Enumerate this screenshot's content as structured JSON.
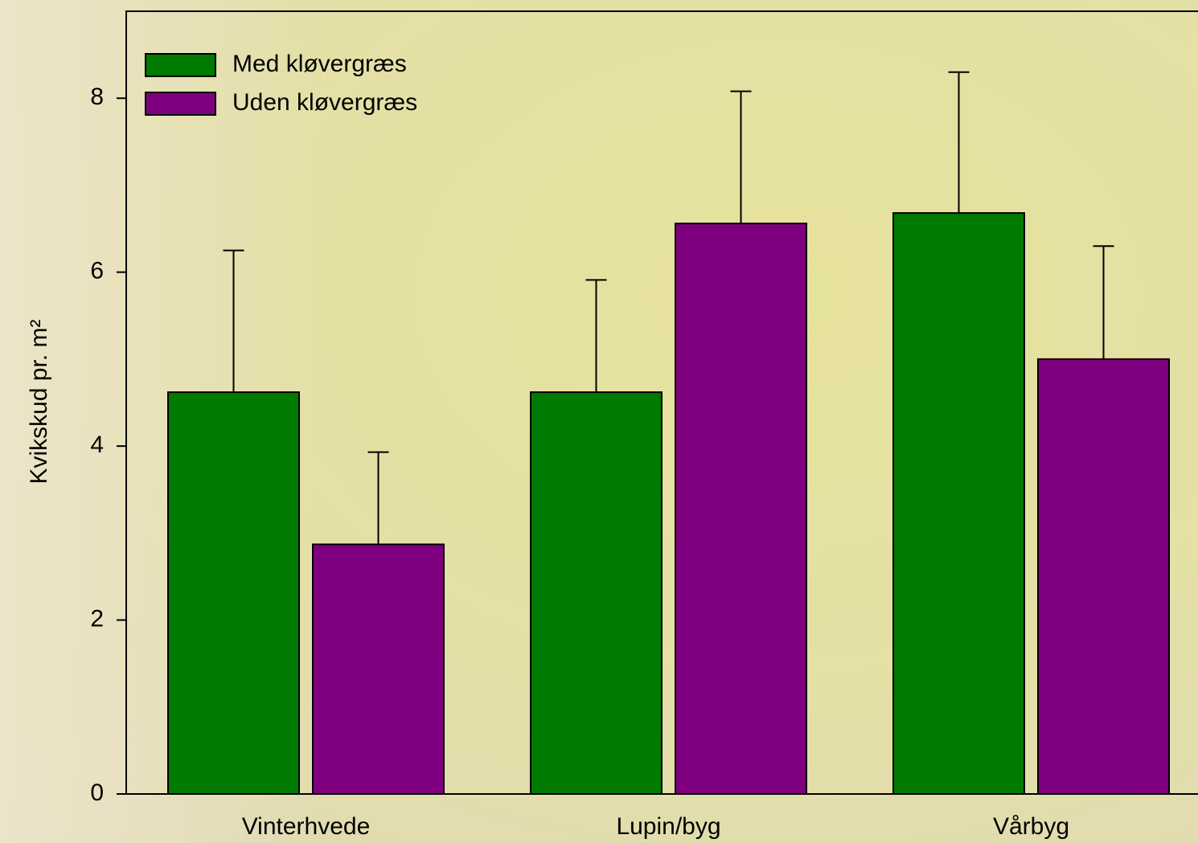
{
  "chart_data": {
    "type": "bar",
    "ylabel": "Kvikskud pr. m²",
    "categories": [
      "Vinterhvede",
      "Lupin/byg",
      "Vårbyg"
    ],
    "series": [
      {
        "name": "Med kløvergræs",
        "color": "#007a00",
        "values": [
          4.62,
          4.62,
          6.68
        ],
        "errors": [
          1.63,
          1.29,
          1.62
        ]
      },
      {
        "name": "Uden kløvergræs",
        "color": "#7f007f",
        "values": [
          2.87,
          6.56,
          5.0
        ],
        "errors": [
          1.06,
          1.52,
          1.3
        ]
      }
    ],
    "ylim": [
      0,
      9
    ],
    "yticks": [
      0,
      2,
      4,
      6,
      8
    ],
    "legend": "upper left"
  }
}
